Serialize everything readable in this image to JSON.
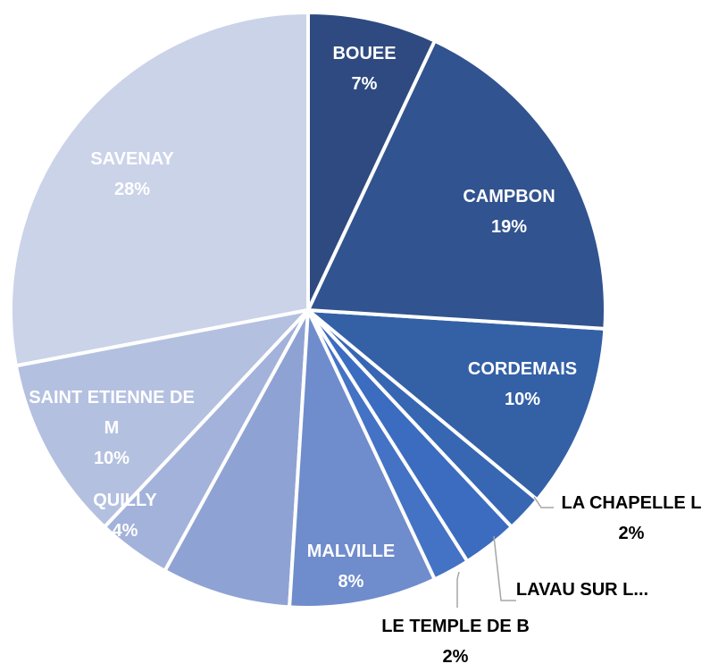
{
  "chart_data": {
    "type": "pie",
    "categories": [
      "BOUEE",
      "CAMPBON",
      "CORDEMAIS",
      "LA CHAPELLE L",
      "LAVAU SUR L...",
      "LE TEMPLE DE B",
      "MALVILLE",
      null,
      "QUILLY",
      "SAINT ETIENNE DE M",
      "SAVENAY"
    ],
    "values": [
      7,
      19,
      10,
      2,
      3,
      2,
      8,
      7,
      4,
      10,
      28
    ],
    "value_labels": [
      "7%",
      "19%",
      "10%",
      "2%",
      null,
      "2%",
      "8%",
      null,
      "4%",
      "10%",
      "28%"
    ],
    "colors": [
      "#2e4a80",
      "#31538f",
      "#3460a6",
      "#3766b3",
      "#3c6cc0",
      "#4472c4",
      "#6f8ccc",
      "#8fa2d4",
      "#a3b2da",
      "#b4c0e0",
      "#cbd3e9"
    ]
  }
}
